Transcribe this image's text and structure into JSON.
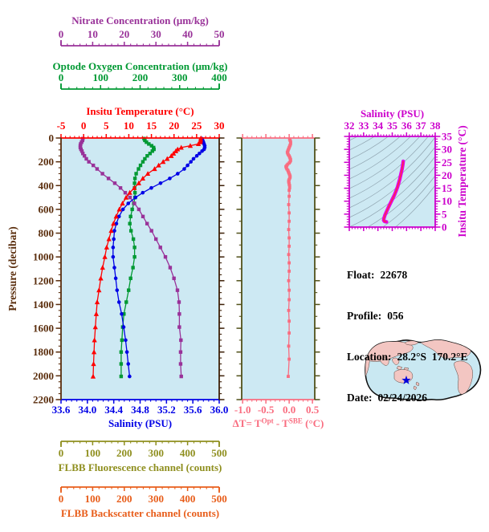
{
  "float_info": {
    "lines": [
      {
        "label": "Float:",
        "value": "22678"
      },
      {
        "label": "Profile:",
        "value": "056"
      },
      {
        "label": "Location:",
        "value": "28.2°S  170.2°E"
      },
      {
        "label": "Date:",
        "value": "02/24/2026"
      }
    ]
  },
  "map": {
    "marker": "star",
    "marker_color": "#0000DD",
    "land_color": "#F3C6C2",
    "ocean_color": "#C9E8F2",
    "outline_color": "#111111"
  },
  "chart_data": [
    {
      "id": "profile-plot",
      "type": "line",
      "ylabel": "Pressure (decibar)",
      "ylim": [
        0,
        2200
      ],
      "yticks": [
        0,
        200,
        400,
        600,
        800,
        1000,
        1200,
        1400,
        1600,
        1800,
        2000,
        2200
      ],
      "y_minor": 50,
      "pressure_color": "#5A2D0C",
      "frame_side_color": "#3D2008",
      "background": "#CDE9F3",
      "series": [
        {
          "name": "Insitu Temperature (°C)",
          "color": "#FF0000",
          "marker": "triangle",
          "xlim": [
            -5,
            30
          ],
          "ticks": [
            -5,
            0,
            5,
            10,
            15,
            20,
            25,
            30
          ],
          "minor": 1,
          "points": [
            [
              5,
              25.9
            ],
            [
              20,
              25.9
            ],
            [
              35,
              25.8
            ],
            [
              50,
              25.4
            ],
            [
              65,
              23.6
            ],
            [
              80,
              21.6
            ],
            [
              95,
              20.8
            ],
            [
              110,
              20.4
            ],
            [
              130,
              19.9
            ],
            [
              150,
              19.4
            ],
            [
              175,
              18.5
            ],
            [
              200,
              17.6
            ],
            [
              230,
              16.6
            ],
            [
              260,
              15.7
            ],
            [
              300,
              14.2
            ],
            [
              340,
              13.1
            ],
            [
              380,
              12.2
            ],
            [
              420,
              11.2
            ],
            [
              460,
              10.2
            ],
            [
              500,
              9.4
            ],
            [
              550,
              8.6
            ],
            [
              600,
              7.9
            ],
            [
              660,
              7.2
            ],
            [
              720,
              6.6
            ],
            [
              780,
              6.1
            ],
            [
              850,
              5.6
            ],
            [
              920,
              5.1
            ],
            [
              1000,
              4.7
            ],
            [
              1090,
              4.2
            ],
            [
              1180,
              3.8
            ],
            [
              1280,
              3.4
            ],
            [
              1380,
              3.0
            ],
            [
              1480,
              2.8
            ],
            [
              1590,
              2.6
            ],
            [
              1700,
              2.4
            ],
            [
              1800,
              2.3
            ],
            [
              1900,
              2.2
            ],
            [
              2005,
              2.1
            ]
          ]
        },
        {
          "name": "Salinity (PSU)",
          "color": "#0000E6",
          "marker": "circle",
          "xlim": [
            33.6,
            36.0
          ],
          "ticks": [
            33.6,
            34.0,
            34.4,
            34.8,
            35.2,
            35.6,
            36.0
          ],
          "tick_labels": [
            "33.6",
            "34.0",
            "34.4",
            "34.8",
            "35.2",
            "35.6",
            "36.0"
          ],
          "minor": 0.08,
          "points": [
            [
              5,
              35.74
            ],
            [
              20,
              35.75
            ],
            [
              35,
              35.76
            ],
            [
              50,
              35.77
            ],
            [
              65,
              35.78
            ],
            [
              80,
              35.78
            ],
            [
              95,
              35.77
            ],
            [
              110,
              35.74
            ],
            [
              130,
              35.7
            ],
            [
              150,
              35.66
            ],
            [
              175,
              35.61
            ],
            [
              200,
              35.57
            ],
            [
              230,
              35.52
            ],
            [
              260,
              35.47
            ],
            [
              300,
              35.37
            ],
            [
              340,
              35.25
            ],
            [
              380,
              35.11
            ],
            [
              420,
              34.97
            ],
            [
              460,
              34.84
            ],
            [
              500,
              34.73
            ],
            [
              550,
              34.62
            ],
            [
              600,
              34.54
            ],
            [
              660,
              34.48
            ],
            [
              720,
              34.44
            ],
            [
              780,
              34.41
            ],
            [
              850,
              34.4
            ],
            [
              920,
              34.39
            ],
            [
              1000,
              34.39
            ],
            [
              1090,
              34.41
            ],
            [
              1180,
              34.43
            ],
            [
              1280,
              34.45
            ],
            [
              1380,
              34.48
            ],
            [
              1480,
              34.52
            ],
            [
              1590,
              34.55
            ],
            [
              1700,
              34.58
            ],
            [
              1800,
              34.6
            ],
            [
              1900,
              34.62
            ],
            [
              2005,
              34.64
            ]
          ]
        },
        {
          "name": "Optode Oxygen Concentration (μm/kg)",
          "color": "#009933",
          "marker": "square",
          "xlim": [
            0,
            400
          ],
          "ticks": [
            0,
            100,
            200,
            300,
            400
          ],
          "minor": 20,
          "points": [
            [
              5,
              210
            ],
            [
              20,
              212
            ],
            [
              35,
              216
            ],
            [
              50,
              222
            ],
            [
              65,
              229
            ],
            [
              80,
              234
            ],
            [
              95,
              235
            ],
            [
              110,
              231
            ],
            [
              130,
              225
            ],
            [
              150,
              218
            ],
            [
              175,
              212
            ],
            [
              200,
              207
            ],
            [
              230,
              201
            ],
            [
              260,
              196
            ],
            [
              300,
              190
            ],
            [
              340,
              187
            ],
            [
              380,
              186
            ],
            [
              420,
              186
            ],
            [
              460,
              187
            ],
            [
              500,
              187
            ],
            [
              550,
              184
            ],
            [
              600,
              180
            ],
            [
              660,
              176
            ],
            [
              720,
              174
            ],
            [
              780,
              177
            ],
            [
              850,
              183
            ],
            [
              920,
              186
            ],
            [
              1000,
              186
            ],
            [
              1090,
              182
            ],
            [
              1180,
              176
            ],
            [
              1280,
              171
            ],
            [
              1380,
              165
            ],
            [
              1480,
              159
            ],
            [
              1590,
              156
            ],
            [
              1700,
              154
            ],
            [
              1800,
              152
            ],
            [
              1900,
              152
            ],
            [
              2005,
              152
            ]
          ]
        },
        {
          "name": "Nitrate Concentration (μm/kg)",
          "color": "#993299",
          "marker": "square",
          "xlim": [
            0,
            50
          ],
          "ticks": [
            0,
            10,
            20,
            30,
            40,
            50
          ],
          "minor": 2,
          "points": [
            [
              5,
              6.9
            ],
            [
              20,
              6.8
            ],
            [
              35,
              6.5
            ],
            [
              50,
              6.2
            ],
            [
              65,
              6.1
            ],
            [
              80,
              6.1
            ],
            [
              95,
              6.3
            ],
            [
              110,
              6.6
            ],
            [
              130,
              6.9
            ],
            [
              150,
              7.4
            ],
            [
              175,
              8.0
            ],
            [
              200,
              8.8
            ],
            [
              230,
              10.2
            ],
            [
              260,
              11.4
            ],
            [
              300,
              13.1
            ],
            [
              340,
              15.0
            ],
            [
              380,
              17.0
            ],
            [
              420,
              18.8
            ],
            [
              460,
              20.3
            ],
            [
              500,
              21.8
            ],
            [
              550,
              23.2
            ],
            [
              600,
              24.6
            ],
            [
              660,
              25.9
            ],
            [
              720,
              27.2
            ],
            [
              780,
              28.6
            ],
            [
              850,
              30.0
            ],
            [
              920,
              31.4
            ],
            [
              1000,
              33.0
            ],
            [
              1090,
              34.5
            ],
            [
              1180,
              35.7
            ],
            [
              1280,
              36.8
            ],
            [
              1380,
              37.3
            ],
            [
              1480,
              37.4
            ],
            [
              1590,
              37.4
            ],
            [
              1700,
              37.9
            ],
            [
              1800,
              37.8
            ],
            [
              1900,
              37.8
            ],
            [
              2005,
              38.0
            ]
          ]
        },
        {
          "name": "FLBB Fluorescence channel (counts)",
          "color": "#8F8F1F",
          "xlim": [
            0,
            500
          ],
          "ticks": [
            0,
            100,
            200,
            300,
            400,
            500
          ],
          "minor": 20,
          "points": []
        },
        {
          "name": "FLBB Backscatter channel (counts)",
          "color": "#E85D1A",
          "xlim": [
            0,
            500
          ],
          "ticks": [
            0,
            100,
            200,
            300,
            400,
            500
          ],
          "minor": 20,
          "points": []
        }
      ]
    },
    {
      "id": "temperature-difference",
      "type": "line",
      "xlabel_parts": [
        [
          "n",
          "ΔT= T"
        ],
        [
          "s",
          "Opt"
        ],
        [
          "n",
          " - T"
        ],
        [
          "s",
          "SBE"
        ],
        [
          "n",
          " (°C)"
        ]
      ],
      "xlim": [
        -1.02,
        0.55
      ],
      "ticks": [
        -1.0,
        -0.5,
        0.0,
        0.5
      ],
      "tick_labels": [
        "-1.0",
        "-0.5",
        "0.0",
        "0.5"
      ],
      "minor": 0.1,
      "ylim": [
        0,
        2200
      ],
      "color": "#F96D80",
      "side_color": "#51511A",
      "marker": "square",
      "background": "#CDE9F3",
      "points": [
        [
          10,
          0.01
        ],
        [
          20,
          0.02
        ],
        [
          30,
          0.03
        ],
        [
          40,
          0.03
        ],
        [
          50,
          0.03
        ],
        [
          60,
          0.02
        ],
        [
          70,
          0.01
        ],
        [
          80,
          0.0
        ],
        [
          90,
          -0.01
        ],
        [
          100,
          -0.02
        ],
        [
          110,
          -0.03
        ],
        [
          120,
          -0.04
        ],
        [
          130,
          -0.03
        ],
        [
          140,
          -0.02
        ],
        [
          150,
          0.0
        ],
        [
          160,
          0.01
        ],
        [
          170,
          0.02
        ],
        [
          180,
          0.03
        ],
        [
          190,
          0.03
        ],
        [
          200,
          0.02
        ],
        [
          210,
          0.0
        ],
        [
          220,
          -0.03
        ],
        [
          230,
          -0.05
        ],
        [
          240,
          -0.07
        ],
        [
          250,
          -0.06
        ],
        [
          260,
          -0.05
        ],
        [
          270,
          -0.03
        ],
        [
          280,
          -0.02
        ],
        [
          290,
          -0.01
        ],
        [
          300,
          0.0
        ],
        [
          310,
          0.01
        ],
        [
          320,
          0.02
        ],
        [
          330,
          0.02
        ],
        [
          340,
          0.01
        ],
        [
          350,
          0.0
        ],
        [
          360,
          -0.01
        ],
        [
          370,
          -0.01
        ],
        [
          380,
          0.0
        ],
        [
          390,
          0.0
        ],
        [
          400,
          0.01
        ],
        [
          420,
          0.01
        ],
        [
          440,
          0.0
        ],
        [
          490,
          0.0
        ],
        [
          560,
          -0.01
        ],
        [
          630,
          0.0
        ],
        [
          700,
          0.0
        ],
        [
          770,
          -0.01
        ],
        [
          840,
          0.0
        ],
        [
          910,
          0.0
        ],
        [
          980,
          -0.01
        ],
        [
          1050,
          0.0
        ],
        [
          1120,
          0.0
        ],
        [
          1200,
          -0.01
        ],
        [
          1280,
          0.0
        ],
        [
          1360,
          0.0
        ],
        [
          1450,
          -0.01
        ],
        [
          1540,
          0.0
        ],
        [
          1640,
          0.0
        ],
        [
          1750,
          -0.01
        ],
        [
          1860,
          0.0
        ],
        [
          2005,
          -0.02
        ]
      ]
    },
    {
      "id": "ts-diagram",
      "type": "line",
      "xlabel": "Salinity (PSU)",
      "xlim": [
        32,
        38
      ],
      "xticks": [
        32,
        33,
        34,
        35,
        36,
        37,
        38
      ],
      "x_minor": 0.2,
      "ylabel": "Insitu Temperature (°C)",
      "ylim": [
        0,
        35
      ],
      "yticks": [
        0,
        5,
        10,
        15,
        20,
        25,
        30,
        35
      ],
      "y_minor": 1,
      "frame_color": "#CC00CC",
      "curve_color": "#E600E6",
      "curve_core_color": "#FF3030",
      "contour_color": "#8FA3AF",
      "background": "#CDE9F3",
      "points": [
        [
          35.77,
          25.4
        ],
        [
          35.75,
          24.6
        ],
        [
          35.72,
          23.4
        ],
        [
          35.68,
          22.2
        ],
        [
          35.63,
          21.0
        ],
        [
          35.58,
          19.8
        ],
        [
          35.52,
          18.4
        ],
        [
          35.45,
          17.0
        ],
        [
          35.37,
          15.5
        ],
        [
          35.27,
          14.0
        ],
        [
          35.15,
          12.4
        ],
        [
          35.01,
          10.8
        ],
        [
          34.87,
          9.2
        ],
        [
          34.73,
          7.6
        ],
        [
          34.6,
          6.0
        ],
        [
          34.49,
          4.6
        ],
        [
          34.42,
          3.4
        ],
        [
          34.4,
          2.7
        ],
        [
          34.44,
          2.3
        ],
        [
          34.52,
          2.1
        ],
        [
          34.6,
          2.0
        ]
      ]
    }
  ]
}
